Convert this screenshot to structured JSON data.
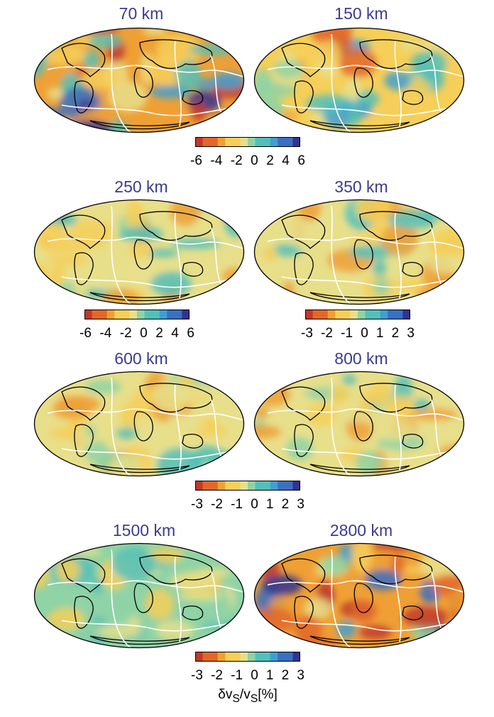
{
  "colors": {
    "title": "#3b3b8f",
    "colormap": [
      "#c0392b",
      "#e3672a",
      "#efa035",
      "#f6cf59",
      "#e8df8b",
      "#8fd3a6",
      "#53c0b8",
      "#3f9fd2",
      "#3a6fc2",
      "#33338f"
    ],
    "plate_boundaries": "#ffffff",
    "coastlines": "#000000"
  },
  "panels": [
    {
      "title": "70 km",
      "tone": "strong"
    },
    {
      "title": "150 km",
      "tone": "warm"
    },
    {
      "title": "250 km",
      "tone": "mild"
    },
    {
      "title": "350 km",
      "tone": "mild"
    },
    {
      "title": "600 km",
      "tone": "mild"
    },
    {
      "title": "800 km",
      "tone": "mild"
    },
    {
      "title": "1500 km",
      "tone": "cool"
    },
    {
      "title": "2800 km",
      "tone": "strong"
    }
  ],
  "colorbars": [
    {
      "ticks": [
        "-6",
        "-4",
        "-2",
        "0",
        "2",
        "4",
        "6"
      ]
    },
    {
      "ticks": [
        "-6",
        "-4",
        "-2",
        "0",
        "2",
        "4",
        "6"
      ]
    },
    {
      "ticks": [
        "-3",
        "-2",
        "-1",
        "0",
        "1",
        "2",
        "3"
      ]
    },
    {
      "ticks": [
        "-3",
        "-2",
        "-1",
        "0",
        "1",
        "2",
        "3"
      ]
    },
    {
      "ticks": [
        "-3",
        "-2",
        "-1",
        "0",
        "1",
        "2",
        "3"
      ]
    }
  ],
  "colorbar_label": "δv<sub>S</sub>/v<sub>S</sub>[%]"
}
